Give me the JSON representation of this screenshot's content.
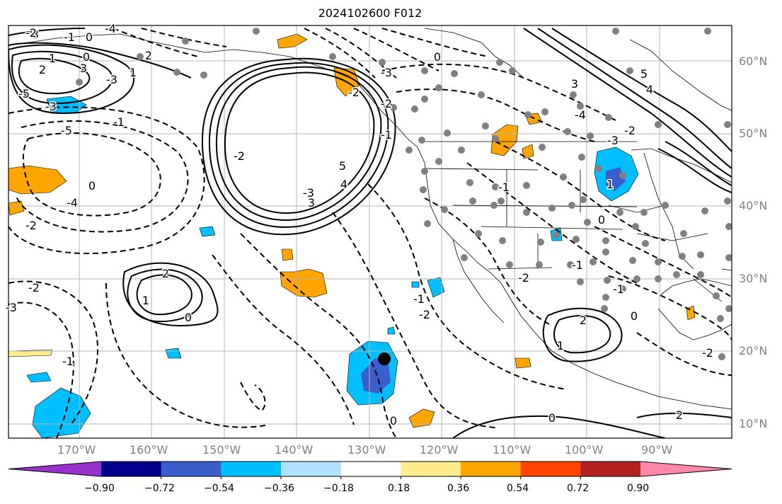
{
  "title": "2024102600 F012",
  "map": {
    "projection": "lat-lon",
    "extent": {
      "lon_min": -180,
      "lon_max": -80,
      "lat_min": 8,
      "lat_max": 65
    },
    "lat_labels": [
      "60°N",
      "50°N",
      "40°N",
      "30°N",
      "20°N",
      "10°N"
    ],
    "lon_labels": [
      "170°W",
      "160°W",
      "150°W",
      "140°W",
      "130°W",
      "120°W",
      "110°W",
      "100°W",
      "90°W"
    ],
    "grid": true,
    "contour_labels": [
      "3",
      "1",
      "0",
      "2",
      "3",
      "-3",
      "-2",
      "-1",
      "0",
      "-4",
      "-5",
      "-4",
      "-2",
      "-3",
      "5",
      "4",
      "3",
      "2",
      "1",
      "-5",
      "-3",
      "-1",
      "0",
      "-2",
      "2",
      "1",
      "0",
      "-2",
      "-1",
      "-3",
      "-2",
      "0",
      "-3",
      "-2",
      "-1",
      "2",
      "1",
      "0",
      "-1",
      "-1",
      "-2",
      "0",
      "-1",
      "0",
      "3",
      "5",
      "4",
      "-4",
      "-3",
      "-2",
      "-1",
      "1",
      "2",
      "0",
      "-2",
      "-1",
      "-2"
    ]
  },
  "colorbar": {
    "ticks": [
      "−0.90",
      "−0.72",
      "−0.54",
      "−0.36",
      "−0.18",
      "0.18",
      "0.36",
      "0.54",
      "0.72",
      "0.90"
    ],
    "colors": [
      "#9932cc",
      "#00008b",
      "#3a5fcd",
      "#00bfff",
      "#b0e2ff",
      "#ffffff",
      "#ffec8b",
      "#ffa500",
      "#ff4500",
      "#b22222",
      "#ff88aa"
    ]
  }
}
